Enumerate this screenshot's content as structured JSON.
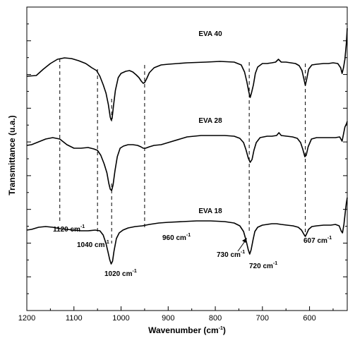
{
  "chart_data": {
    "type": "line",
    "xlabel": "Wavenumber (cm",
    "xlabel_sup": "-1",
    "xlabel_tail": ")",
    "ylabel": "Transmittance (u.a.)",
    "xlim": [
      1200,
      520
    ],
    "x_reversed": true,
    "x_ticks": [
      1200,
      1100,
      1000,
      900,
      800,
      700,
      600
    ],
    "y_ticks_labeled": false,
    "grid": false,
    "series": [
      {
        "name": "EVA 40",
        "points": [
          [
            1200,
            108
          ],
          [
            1180,
            107
          ],
          [
            1165,
            98
          ],
          [
            1150,
            90
          ],
          [
            1135,
            84
          ],
          [
            1120,
            82
          ],
          [
            1105,
            83
          ],
          [
            1090,
            86
          ],
          [
            1075,
            90
          ],
          [
            1062,
            96
          ],
          [
            1052,
            100
          ],
          [
            1045,
            108
          ],
          [
            1038,
            120
          ],
          [
            1032,
            132
          ],
          [
            1027,
            148
          ],
          [
            1023,
            166
          ],
          [
            1021,
            170
          ],
          [
            1019,
            168
          ],
          [
            1016,
            150
          ],
          [
            1012,
            128
          ],
          [
            1006,
            110
          ],
          [
            1000,
            104
          ],
          [
            990,
            101
          ],
          [
            982,
            100
          ],
          [
            975,
            102
          ],
          [
            968,
            106
          ],
          [
            962,
            110
          ],
          [
            957,
            115
          ],
          [
            953,
            118
          ],
          [
            950,
            117
          ],
          [
            946,
            112
          ],
          [
            940,
            103
          ],
          [
            930,
            96
          ],
          [
            915,
            92
          ],
          [
            900,
            91
          ],
          [
            860,
            89
          ],
          [
            820,
            88
          ],
          [
            790,
            87
          ],
          [
            760,
            88
          ],
          [
            745,
            92
          ],
          [
            738,
            102
          ],
          [
            733,
            116
          ],
          [
            729,
            130
          ],
          [
            726,
            138
          ],
          [
            723,
            131
          ],
          [
            719,
            120
          ],
          [
            715,
            104
          ],
          [
            710,
            95
          ],
          [
            700,
            90
          ],
          [
            690,
            90
          ],
          [
            680,
            89
          ],
          [
            672,
            88
          ],
          [
            666,
            84
          ],
          [
            660,
            88
          ],
          [
            650,
            88
          ],
          [
            640,
            89
          ],
          [
            630,
            90
          ],
          [
            622,
            93
          ],
          [
            616,
            100
          ],
          [
            612,
            112
          ],
          [
            609,
            121
          ],
          [
            606,
            112
          ],
          [
            602,
            98
          ],
          [
            595,
            92
          ],
          [
            585,
            91
          ],
          [
            570,
            90
          ],
          [
            560,
            90
          ],
          [
            550,
            89
          ],
          [
            540,
            90
          ],
          [
            534,
            96
          ],
          [
            531,
            104
          ],
          [
            528,
            96
          ],
          [
            525,
            84
          ],
          [
            522,
            62
          ],
          [
            520,
            40
          ]
        ]
      },
      {
        "name": "EVA 28",
        "points": [
          [
            1200,
            206
          ],
          [
            1190,
            205
          ],
          [
            1175,
            201
          ],
          [
            1160,
            197
          ],
          [
            1145,
            195
          ],
          [
            1130,
            197
          ],
          [
            1115,
            205
          ],
          [
            1100,
            210
          ],
          [
            1085,
            210
          ],
          [
            1070,
            209
          ],
          [
            1058,
            211
          ],
          [
            1050,
            213
          ],
          [
            1043,
            220
          ],
          [
            1036,
            232
          ],
          [
            1030,
            245
          ],
          [
            1026,
            260
          ],
          [
            1023,
            268
          ],
          [
            1020,
            270
          ],
          [
            1017,
            262
          ],
          [
            1013,
            242
          ],
          [
            1008,
            222
          ],
          [
            1002,
            210
          ],
          [
            995,
            207
          ],
          [
            985,
            205
          ],
          [
            975,
            205
          ],
          [
            965,
            206
          ],
          [
            958,
            208
          ],
          [
            953,
            210
          ],
          [
            948,
            210
          ],
          [
            940,
            208
          ],
          [
            930,
            206
          ],
          [
            915,
            205
          ],
          [
            900,
            202
          ],
          [
            860,
            194
          ],
          [
            830,
            192
          ],
          [
            800,
            192
          ],
          [
            780,
            192
          ],
          [
            760,
            193
          ],
          [
            748,
            196
          ],
          [
            740,
            202
          ],
          [
            735,
            212
          ],
          [
            730,
            224
          ],
          [
            726,
            230
          ],
          [
            722,
            226
          ],
          [
            718,
            213
          ],
          [
            713,
            202
          ],
          [
            705,
            195
          ],
          [
            690,
            193
          ],
          [
            680,
            193
          ],
          [
            670,
            192
          ],
          [
            665,
            188
          ],
          [
            660,
            192
          ],
          [
            648,
            193
          ],
          [
            636,
            194
          ],
          [
            626,
            196
          ],
          [
            619,
            202
          ],
          [
            614,
            212
          ],
          [
            610,
            222
          ],
          [
            607,
            220
          ],
          [
            603,
            208
          ],
          [
            596,
            197
          ],
          [
            585,
            195
          ],
          [
            570,
            195
          ],
          [
            555,
            195
          ],
          [
            545,
            195
          ],
          [
            536,
            194
          ],
          [
            531,
            200
          ],
          [
            528,
            190
          ],
          [
            525,
            180
          ],
          [
            522,
            176
          ],
          [
            520,
            172
          ]
        ]
      },
      {
        "name": "EVA 18",
        "points": [
          [
            1200,
            326
          ],
          [
            1190,
            325
          ],
          [
            1175,
            322
          ],
          [
            1160,
            321
          ],
          [
            1145,
            322
          ],
          [
            1130,
            324
          ],
          [
            1115,
            325
          ],
          [
            1100,
            326
          ],
          [
            1085,
            327
          ],
          [
            1070,
            327
          ],
          [
            1055,
            326
          ],
          [
            1045,
            327
          ],
          [
            1038,
            333
          ],
          [
            1032,
            345
          ],
          [
            1028,
            356
          ],
          [
            1024,
            368
          ],
          [
            1021,
            374
          ],
          [
            1018,
            370
          ],
          [
            1015,
            356
          ],
          [
            1010,
            338
          ],
          [
            1004,
            330
          ],
          [
            996,
            326
          ],
          [
            985,
            323
          ],
          [
            970,
            321
          ],
          [
            955,
            320
          ],
          [
            940,
            318
          ],
          [
            920,
            316
          ],
          [
            900,
            315
          ],
          [
            870,
            314
          ],
          [
            840,
            313
          ],
          [
            810,
            313
          ],
          [
            780,
            314
          ],
          [
            760,
            316
          ],
          [
            748,
            320
          ],
          [
            740,
            328
          ],
          [
            735,
            340
          ],
          [
            730,
            354
          ],
          [
            727,
            360
          ],
          [
            724,
            354
          ],
          [
            720,
            340
          ],
          [
            716,
            328
          ],
          [
            710,
            322
          ],
          [
            700,
            319
          ],
          [
            690,
            318
          ],
          [
            680,
            317
          ],
          [
            670,
            317
          ],
          [
            660,
            318
          ],
          [
            648,
            319
          ],
          [
            635,
            320
          ],
          [
            624,
            322
          ],
          [
            617,
            326
          ],
          [
            612,
            332
          ],
          [
            609,
            335
          ],
          [
            606,
            331
          ],
          [
            602,
            325
          ],
          [
            595,
            321
          ],
          [
            585,
            320
          ],
          [
            570,
            319
          ],
          [
            555,
            319
          ],
          [
            545,
            318
          ],
          [
            537,
            320
          ],
          [
            533,
            327
          ],
          [
            530,
            330
          ],
          [
            527,
            318
          ],
          [
            524,
            300
          ],
          [
            522,
            288
          ],
          [
            520,
            280
          ]
        ]
      }
    ],
    "series_labels": [
      "EVA 40",
      "EVA 28",
      "EVA 18"
    ],
    "annotations": [
      {
        "text": "1120 cm",
        "sup": "-1",
        "line_x": 1130
      },
      {
        "text": "1040 cm",
        "sup": "-1",
        "line_x": 1050
      },
      {
        "text": "1020 cm",
        "sup": "-1",
        "line_x": 1020
      },
      {
        "text": "960 cm",
        "sup": "-1",
        "line_x": 950
      },
      {
        "text": "730 cm",
        "sup": "-1",
        "line_x": 728
      },
      {
        "text": "720 cm",
        "sup": "-1",
        "line_x": 720
      },
      {
        "text": "607 cm",
        "sup": "-1",
        "line_x": 609
      }
    ]
  }
}
